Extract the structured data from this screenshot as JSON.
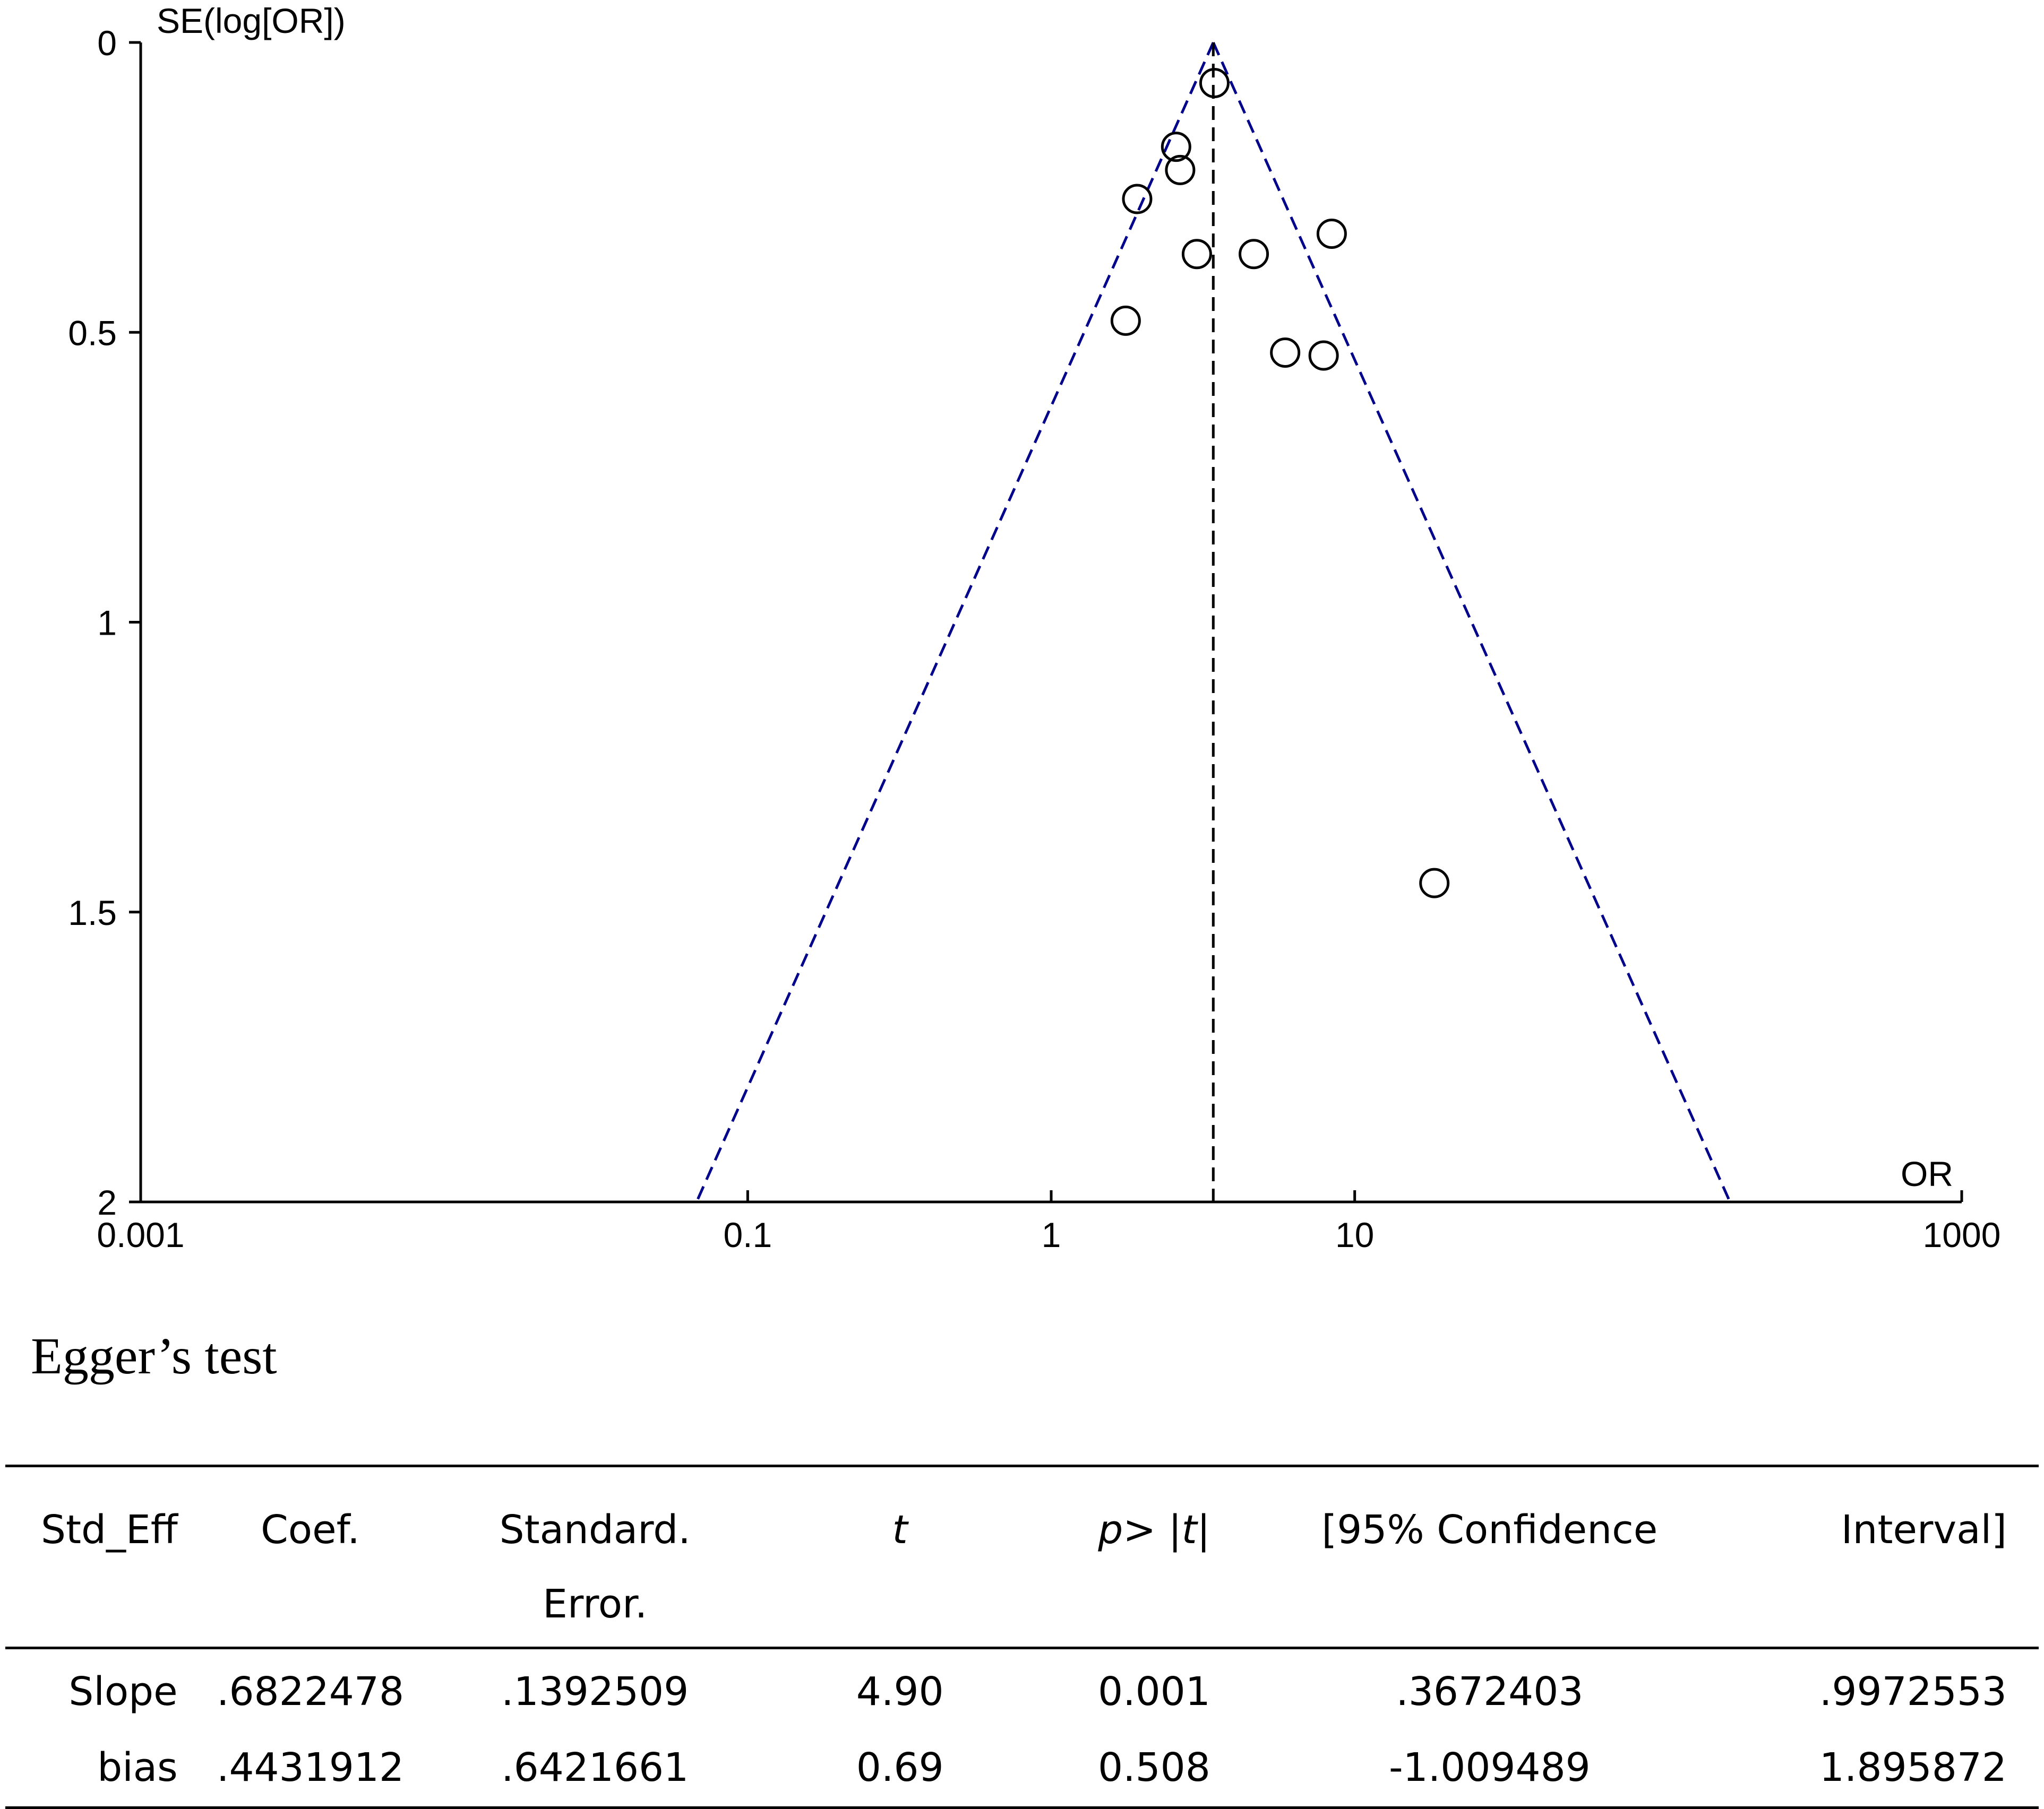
{
  "chart_data": {
    "type": "scatter",
    "subtype": "funnel plot",
    "ylabel": "SE(log[OR])",
    "xlabel": "OR",
    "x_scale": "log",
    "xlim": [
      0.001,
      1000
    ],
    "ylim": [
      2,
      0
    ],
    "y_inverted": true,
    "x_ticks": [
      "0.001",
      "0.1",
      "1",
      "10",
      "1000"
    ],
    "x_tick_values": [
      0.001,
      0.1,
      1,
      10,
      1000
    ],
    "y_ticks": [
      "0",
      "0.5",
      "1",
      "1.5",
      "2"
    ],
    "y_tick_values": [
      0,
      0.5,
      1,
      1.5,
      2
    ],
    "pooled_or": 3.42,
    "funnel_line_color": "#00008b",
    "center_line_color": "#000000",
    "points": [
      {
        "x": 3.45,
        "y": 0.07
      },
      {
        "x": 2.58,
        "y": 0.18
      },
      {
        "x": 2.66,
        "y": 0.22
      },
      {
        "x": 1.92,
        "y": 0.27
      },
      {
        "x": 8.4,
        "y": 0.33
      },
      {
        "x": 3.02,
        "y": 0.365
      },
      {
        "x": 4.65,
        "y": 0.365
      },
      {
        "x": 1.76,
        "y": 0.48
      },
      {
        "x": 5.9,
        "y": 0.535
      },
      {
        "x": 7.9,
        "y": 0.54
      },
      {
        "x": 18.3,
        "y": 1.45
      }
    ]
  },
  "egger": {
    "title": "Egger’s test",
    "headers": [
      "Std_Eff",
      "Coef.",
      "Standard.",
      "Error.",
      "t",
      "p> |t|",
      "[95% Confidence",
      "Interval]"
    ],
    "rows": [
      {
        "label": "Slope",
        "coef": ".6822478",
        "se": ".1392509",
        "t": "4.90",
        "p": "0.001",
        "ci_low": ".3672403",
        "ci_high": ".9972553"
      },
      {
        "label": "bias",
        "coef": ".4431912",
        "se": ".6421661",
        "t": "0.69",
        "p": "0.508",
        "ci_low": "-1.009489",
        "ci_high": "1.895872"
      }
    ]
  }
}
